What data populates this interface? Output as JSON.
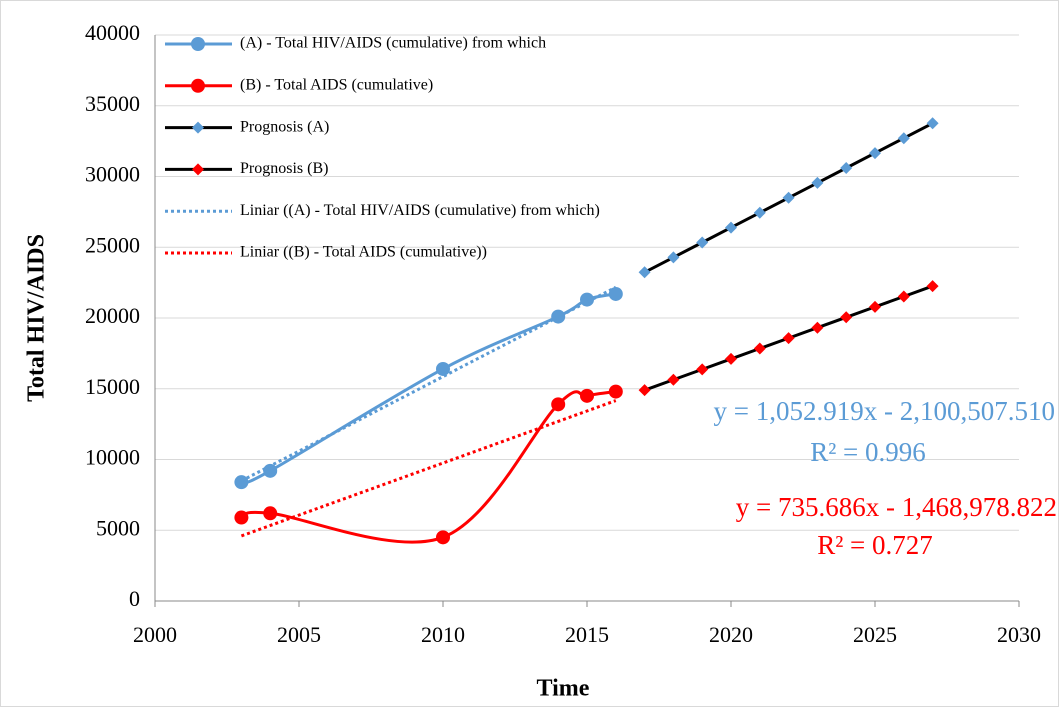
{
  "chart_data": {
    "type": "line",
    "y_axis_label": "Total HIV/AIDS",
    "x_axis_label": "Time",
    "xlim": [
      2000,
      2030
    ],
    "xticks": [
      2000,
      2005,
      2010,
      2015,
      2020,
      2025,
      2030
    ],
    "ylim": [
      0,
      40000
    ],
    "yticks": [
      0,
      5000,
      10000,
      15000,
      20000,
      25000,
      30000,
      35000,
      40000
    ],
    "grid": true,
    "legend": "top-left",
    "series": [
      {
        "name": "(A) - Total HIV/AIDS (cumulative) from which",
        "color": "#5b9bd5",
        "marker": "circle",
        "marker_color": "#5b9bd5",
        "line_style": "smooth",
        "x": [
          2003,
          2004,
          2010,
          2014,
          2015,
          2016
        ],
        "values": [
          8400,
          9200,
          16400,
          20100,
          21300,
          21700
        ]
      },
      {
        "name": "(B) - Total AIDS (cumulative)",
        "color": "#ff0000",
        "marker": "circle",
        "marker_color": "#ff0000",
        "line_style": "smooth",
        "x": [
          2003,
          2004,
          2010,
          2014,
          2015,
          2016
        ],
        "values": [
          5900,
          6200,
          4500,
          13900,
          14500,
          14800
        ]
      },
      {
        "name": "Prognosis (A)",
        "color": "#000000",
        "marker": "diamond",
        "marker_color": "#5b9bd5",
        "line_style": "solid",
        "x": [
          2017,
          2018,
          2019,
          2020,
          2021,
          2022,
          2023,
          2024,
          2025,
          2026,
          2027
        ],
        "values": [
          23230,
          24283,
          25336,
          26389,
          27442,
          28495,
          29548,
          30601,
          31654,
          32707,
          33760
        ]
      },
      {
        "name": "Prognosis (B)",
        "color": "#000000",
        "marker": "diamond",
        "marker_color": "#ff0000",
        "line_style": "solid",
        "x": [
          2017,
          2018,
          2019,
          2020,
          2021,
          2022,
          2023,
          2024,
          2025,
          2026,
          2027
        ],
        "values": [
          14900,
          15636,
          16371,
          17107,
          17843,
          18578,
          19314,
          20050,
          20785,
          21521,
          22257
        ]
      },
      {
        "name": "Liniar ((A) - Total HIV/AIDS (cumulative) from which)",
        "color": "#5b9bd5",
        "marker": "none",
        "line_style": "dotted",
        "x": [
          2003,
          2016
        ],
        "values": [
          8489,
          22177
        ]
      },
      {
        "name": "Liniar ((B) - Total AIDS (cumulative))",
        "color": "#ff0000",
        "marker": "none",
        "line_style": "dotted",
        "x": [
          2003,
          2016
        ],
        "values": [
          4600,
          14164
        ]
      }
    ],
    "annotations": [
      {
        "text": "y = 1,052.919x - 2,100,507.510",
        "color": "#5b9bd5"
      },
      {
        "text": "R² = 0.996",
        "color": "#5b9bd5"
      },
      {
        "text": "y = 735.686x - 1,468,978.822",
        "color": "#ff0000"
      },
      {
        "text": "R² = 0.727",
        "color": "#ff0000"
      }
    ]
  }
}
